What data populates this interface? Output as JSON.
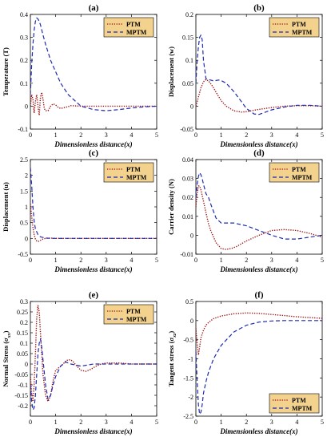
{
  "colors": {
    "PTM": "#a01010",
    "MPTM": "#1f2bb0",
    "legend_bg": "#f3d28e",
    "axes": "#000000",
    "grid_faint": "#f4b8ec"
  },
  "chart_data": [
    {
      "type": "line",
      "panel": "(a)",
      "title": "(a)",
      "xlabel": "Dimensionless distance(x)",
      "ylabel": "Temperature (T)",
      "xlim": [
        0,
        5
      ],
      "ylim": [
        -0.1,
        0.4
      ],
      "xticks": [
        "0",
        "1",
        "2",
        "3",
        "4",
        "5"
      ],
      "yticks": [
        "-0.1",
        "0",
        "0.1",
        "0.2",
        "0.3",
        "0.4"
      ],
      "legend_position": "top-right",
      "series": [
        {
          "name": "PTM",
          "style": "dotted",
          "x": [
            0,
            0.05,
            0.1,
            0.15,
            0.2,
            0.25,
            0.3,
            0.35,
            0.4,
            0.45,
            0.5,
            0.55,
            0.6,
            0.7,
            0.8,
            0.9,
            1.0,
            1.1,
            1.2,
            1.4,
            1.6,
            2.0,
            2.5,
            3.0,
            4.0,
            5.0
          ],
          "y": [
            0,
            0.05,
            0.03,
            -0.03,
            0.02,
            0.05,
            0.0,
            -0.04,
            0.04,
            0.06,
            0.03,
            -0.01,
            -0.02,
            -0.02,
            0.0,
            0.01,
            0.005,
            -0.005,
            -0.01,
            -0.005,
            0.002,
            0.0,
            0.0,
            0.0,
            0.0,
            0.0
          ]
        },
        {
          "name": "MPTM",
          "style": "dashed",
          "x": [
            0,
            0.05,
            0.1,
            0.15,
            0.2,
            0.25,
            0.3,
            0.35,
            0.4,
            0.5,
            0.6,
            0.8,
            1.0,
            1.2,
            1.5,
            2.0,
            2.5,
            3.0,
            3.5,
            4.0,
            4.5,
            5.0
          ],
          "y": [
            0.05,
            0.18,
            0.27,
            0.33,
            0.37,
            0.385,
            0.38,
            0.37,
            0.355,
            0.31,
            0.27,
            0.2,
            0.15,
            0.1,
            0.05,
            0.0,
            -0.015,
            -0.02,
            -0.015,
            -0.008,
            -0.003,
            0.0
          ]
        }
      ]
    },
    {
      "type": "line",
      "panel": "(b)",
      "title": "(b)",
      "xlabel": "Dimensionless distance(x)",
      "ylabel": "Displacement (w)",
      "xlim": [
        0,
        5
      ],
      "ylim": [
        -0.05,
        0.2
      ],
      "xticks": [
        "0",
        "1",
        "2",
        "3",
        "4",
        "5"
      ],
      "yticks": [
        "-0.05",
        "0",
        "0.05",
        "0.1",
        "0.15",
        "0.2"
      ],
      "legend_position": "top-right",
      "series": [
        {
          "name": "PTM",
          "style": "dotted",
          "x": [
            0,
            0.1,
            0.2,
            0.3,
            0.4,
            0.5,
            0.6,
            0.7,
            0.8,
            1.0,
            1.2,
            1.5,
            1.8,
            2.0,
            2.2,
            2.5,
            3.0,
            3.5,
            4.0,
            4.5,
            5.0
          ],
          "y": [
            0,
            0.02,
            0.04,
            0.053,
            0.058,
            0.055,
            0.048,
            0.04,
            0.03,
            0.012,
            0.0,
            -0.01,
            -0.013,
            -0.012,
            -0.01,
            -0.007,
            -0.003,
            0.0,
            0.001,
            0.001,
            0.0
          ]
        },
        {
          "name": "MPTM",
          "style": "dashed",
          "x": [
            0,
            0.05,
            0.1,
            0.15,
            0.2,
            0.25,
            0.3,
            0.4,
            0.5,
            0.7,
            0.9,
            1.0,
            1.2,
            1.5,
            1.8,
            2.0,
            2.3,
            2.5,
            2.8,
            3.0,
            3.5,
            4.0,
            4.5,
            5.0
          ],
          "y": [
            0.05,
            0.1,
            0.13,
            0.15,
            0.155,
            0.145,
            0.1,
            0.06,
            0.058,
            0.055,
            0.057,
            0.056,
            0.05,
            0.032,
            0.01,
            -0.005,
            -0.017,
            -0.018,
            -0.012,
            -0.008,
            -0.002,
            0.002,
            0.002,
            0.0
          ]
        }
      ]
    },
    {
      "type": "line",
      "panel": "(c)",
      "title": "(c)",
      "xlabel": "Dimensionless distance(x)",
      "ylabel": "Displacement (u)",
      "xlim": [
        0,
        5
      ],
      "ylim": [
        -0.5,
        2.5
      ],
      "xticks": [
        "0",
        "1",
        "2",
        "3",
        "4",
        "5"
      ],
      "yticks": [
        "-0.5",
        "0",
        "0.5",
        "1",
        "1.5",
        "2",
        "2.5"
      ],
      "legend_position": "top-right",
      "series": [
        {
          "name": "PTM",
          "style": "dotted",
          "x": [
            0,
            0.05,
            0.1,
            0.15,
            0.2,
            0.25,
            0.3,
            0.35,
            0.4,
            0.5,
            0.6,
            0.7,
            0.8,
            1.0,
            1.5,
            2.0,
            3.0,
            4.0,
            5.0
          ],
          "y": [
            1.1,
            0.7,
            0.35,
            0.12,
            -0.02,
            -0.08,
            -0.1,
            -0.08,
            -0.06,
            -0.02,
            0.0,
            0.01,
            0.01,
            0.0,
            0.0,
            0.0,
            0.0,
            0.0,
            0.0
          ]
        },
        {
          "name": "MPTM",
          "style": "dashed",
          "x": [
            0,
            0.05,
            0.1,
            0.15,
            0.2,
            0.3,
            0.4,
            0.5,
            0.6,
            0.8,
            1.0,
            1.5,
            2.0,
            3.0,
            4.0,
            5.0
          ],
          "y": [
            2.25,
            1.7,
            1.0,
            0.55,
            0.3,
            0.12,
            0.05,
            0.03,
            0.01,
            0.0,
            0.0,
            0.0,
            0.0,
            0.0,
            0.0,
            0.0
          ]
        }
      ]
    },
    {
      "type": "line",
      "panel": "(d)",
      "title": "(d)",
      "xlabel": "Dimensionless distance(x)",
      "ylabel": "Carrier density (N)",
      "xlim": [
        0,
        5
      ],
      "ylim": [
        -0.01,
        0.04
      ],
      "xticks": [
        "0",
        "1",
        "2",
        "3",
        "4",
        "5"
      ],
      "yticks": [
        "-0.01",
        "0",
        "0.01",
        "0.02",
        "0.03",
        "0.04"
      ],
      "legend_position": "top-right",
      "series": [
        {
          "name": "PTM",
          "style": "dotted",
          "x": [
            0,
            0.05,
            0.1,
            0.15,
            0.2,
            0.3,
            0.4,
            0.5,
            0.6,
            0.8,
            1.0,
            1.2,
            1.4,
            1.6,
            2.0,
            2.5,
            3.0,
            3.5,
            4.0,
            4.5,
            5.0
          ],
          "y": [
            0.015,
            0.022,
            0.026,
            0.026,
            0.024,
            0.018,
            0.012,
            0.006,
            0.002,
            -0.004,
            -0.007,
            -0.0075,
            -0.007,
            -0.006,
            -0.003,
            0.0,
            0.0025,
            0.003,
            0.0025,
            0.001,
            -0.001
          ]
        },
        {
          "name": "MPTM",
          "style": "dashed",
          "x": [
            0,
            0.05,
            0.1,
            0.15,
            0.2,
            0.25,
            0.3,
            0.4,
            0.5,
            0.6,
            0.8,
            1.0,
            1.5,
            2.0,
            2.5,
            3.0,
            3.5,
            4.0,
            4.5,
            5.0
          ],
          "y": [
            0.02,
            0.027,
            0.031,
            0.033,
            0.032,
            0.03,
            0.027,
            0.022,
            0.02,
            0.016,
            0.009,
            0.0065,
            0.0065,
            0.005,
            0.0025,
            0.0,
            -0.002,
            -0.002,
            -0.001,
            0.0
          ]
        }
      ]
    },
    {
      "type": "line",
      "panel": "(e)",
      "title": "(e)",
      "xlabel": "Dimensionless distance(x)",
      "ylabel": "Normal Stress (σ_xx)",
      "ylabel_main": "Normal Stress (",
      "ylabel_symbol": "σ",
      "ylabel_sub": "xx",
      "ylabel_close": ")",
      "xlim": [
        0,
        5
      ],
      "ylim": [
        -0.25,
        0.3
      ],
      "xticks": [
        "0",
        "1",
        "2",
        "3",
        "4",
        "5"
      ],
      "yticks": [
        "-0.2",
        "-0.15",
        "-0.1",
        "-0.05",
        "0",
        "0.05",
        "0.1",
        "0.15",
        "0.2",
        "0.25",
        "0.3"
      ],
      "legend_position": "top-right",
      "series": [
        {
          "name": "PTM",
          "style": "dotted",
          "x": [
            0,
            0.05,
            0.1,
            0.15,
            0.2,
            0.25,
            0.3,
            0.35,
            0.4,
            0.5,
            0.6,
            0.7,
            0.8,
            0.9,
            1.0,
            1.1,
            1.2,
            1.3,
            1.4,
            1.5,
            1.6,
            1.7,
            1.8,
            2.0,
            2.2,
            2.4,
            2.6,
            2.8,
            3.0,
            3.5,
            4.0,
            4.5,
            5.0
          ],
          "y": [
            -0.05,
            -0.14,
            -0.18,
            -0.1,
            0.05,
            0.22,
            0.28,
            0.25,
            0.15,
            -0.05,
            -0.15,
            -0.18,
            -0.15,
            -0.08,
            -0.03,
            -0.02,
            -0.01,
            0.0,
            0.015,
            0.02,
            0.02,
            0.01,
            -0.005,
            -0.03,
            -0.035,
            -0.025,
            -0.01,
            0.0,
            0.005,
            0.005,
            0.0,
            0.0,
            0.0
          ]
        },
        {
          "name": "MPTM",
          "style": "dashed",
          "x": [
            0,
            0.05,
            0.1,
            0.15,
            0.2,
            0.25,
            0.3,
            0.35,
            0.4,
            0.45,
            0.5,
            0.6,
            0.7,
            0.8,
            0.9,
            1.0,
            1.2,
            1.4,
            1.6,
            2.0,
            2.5,
            3.0,
            3.5,
            4.0,
            4.5,
            5.0
          ],
          "y": [
            -0.1,
            -0.18,
            -0.22,
            -0.21,
            -0.15,
            -0.05,
            0.05,
            0.1,
            0.12,
            0.08,
            0.02,
            -0.1,
            -0.17,
            -0.15,
            -0.1,
            -0.06,
            -0.01,
            0.01,
            0.0,
            -0.01,
            0.0,
            0.0,
            0.0,
            0.0,
            0.0,
            0.0
          ]
        }
      ]
    },
    {
      "type": "line",
      "panel": "(f)",
      "title": "(f)",
      "xlabel": "Dimensionless distance(x)",
      "ylabel": "Tangent stress (σ_xz)",
      "ylabel_main": "Tangent stress (",
      "ylabel_symbol": "σ",
      "ylabel_sub": "xz",
      "ylabel_close": ")",
      "xlim": [
        0,
        5
      ],
      "ylim": [
        -2.5,
        0.5
      ],
      "xticks": [
        "0",
        "1",
        "2",
        "3",
        "4",
        "5"
      ],
      "yticks": [
        "-2.5",
        "-2",
        "-1.5",
        "-1",
        "-0.5",
        "0",
        "0.5"
      ],
      "legend_position": "bottom-right",
      "series": [
        {
          "name": "PTM",
          "style": "dotted",
          "x": [
            0,
            0.05,
            0.1,
            0.15,
            0.2,
            0.3,
            0.4,
            0.5,
            0.7,
            1.0,
            1.5,
            2.0,
            2.5,
            3.0,
            3.5,
            4.0,
            4.5,
            5.0
          ],
          "y": [
            -0.2,
            -0.6,
            -0.9,
            -0.7,
            -0.45,
            -0.25,
            -0.12,
            -0.05,
            0.05,
            0.12,
            0.18,
            0.2,
            0.19,
            0.16,
            0.13,
            0.1,
            0.08,
            0.06
          ]
        },
        {
          "name": "MPTM",
          "style": "dashed",
          "x": [
            0,
            0.05,
            0.1,
            0.15,
            0.2,
            0.25,
            0.3,
            0.4,
            0.5,
            0.7,
            1.0,
            1.5,
            2.0,
            2.5,
            3.0,
            3.5,
            4.0,
            5.0
          ],
          "y": [
            -0.8,
            -1.6,
            -2.2,
            -2.45,
            -2.4,
            -2.2,
            -1.9,
            -1.6,
            -1.35,
            -1.0,
            -0.65,
            -0.3,
            -0.12,
            -0.04,
            -0.01,
            0.0,
            0.0,
            0.0
          ]
        }
      ]
    }
  ]
}
